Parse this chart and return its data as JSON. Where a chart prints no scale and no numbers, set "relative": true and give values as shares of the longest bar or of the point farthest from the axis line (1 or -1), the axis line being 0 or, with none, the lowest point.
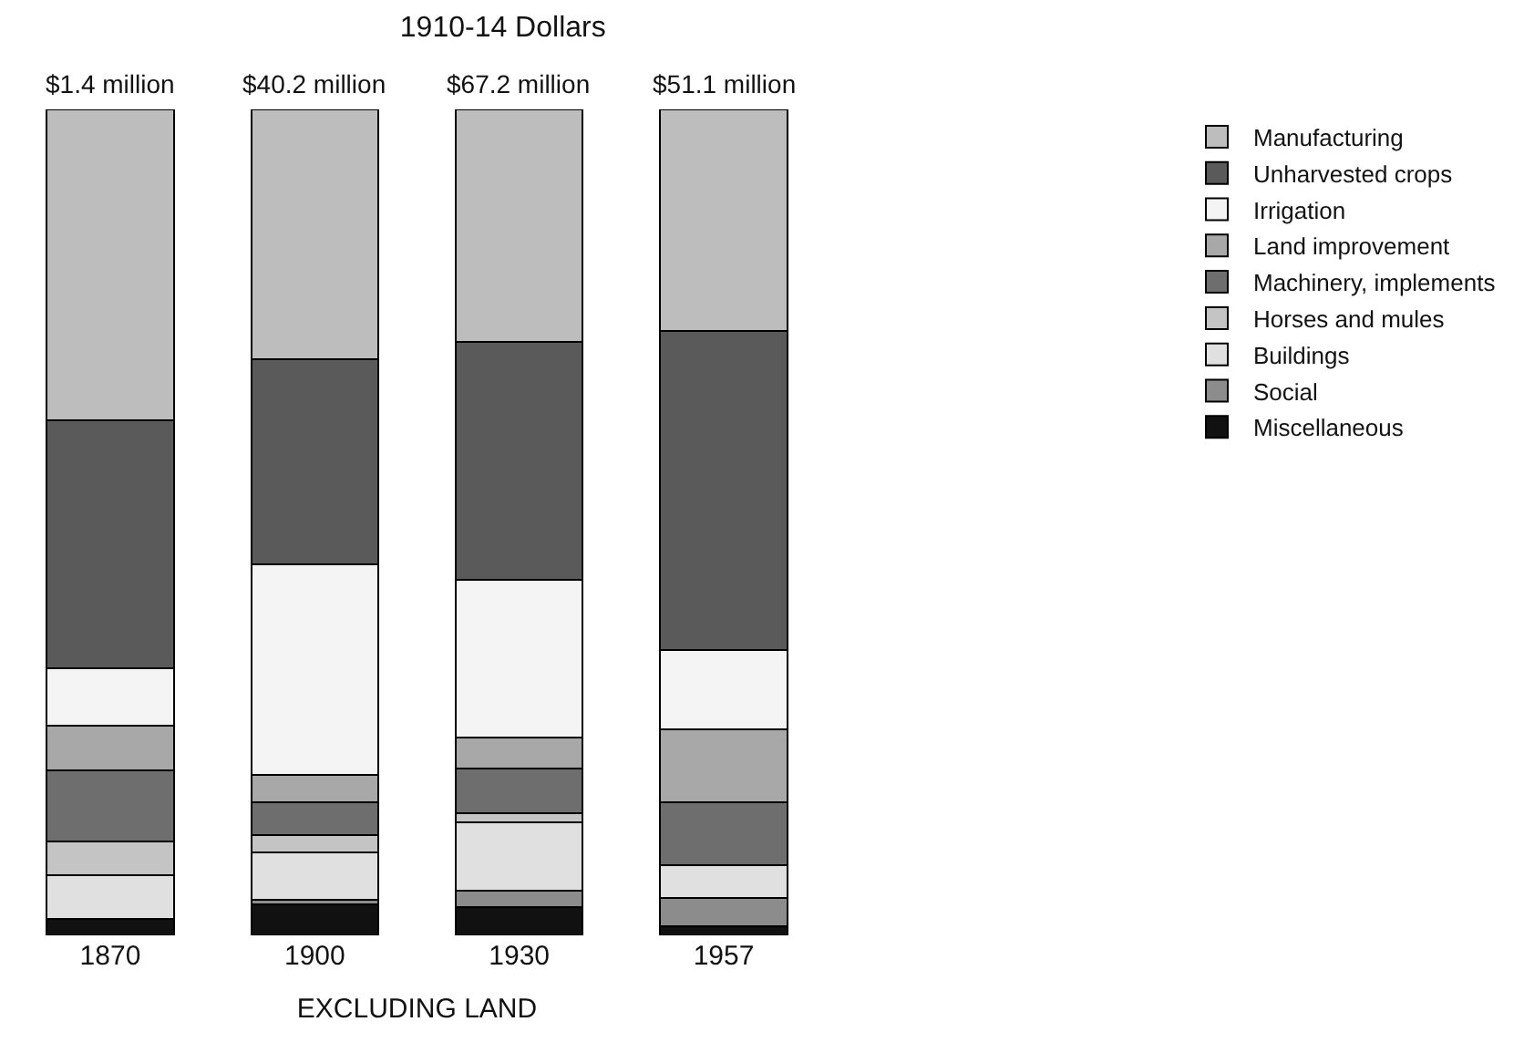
{
  "chart_data": {
    "type": "bar",
    "title": "1910-14 Dollars",
    "xlabel": "EXCLUDING LAND",
    "categories": [
      "1870",
      "1900",
      "1930",
      "1957"
    ],
    "stacked": true,
    "relative": true,
    "legend": "right",
    "annotations": [
      "$1.4 million",
      "$40.2 million",
      "$67.2 million",
      "$51.1 million"
    ],
    "series": [
      {
        "name": "Miscellaneous",
        "color": "#111111",
        "values": [
          0.02,
          0.038,
          0.034,
          0.011
        ]
      },
      {
        "name": "Social",
        "color": "#8c8c8c",
        "values": [
          0,
          0.005,
          0.02,
          0.034
        ]
      },
      {
        "name": "Buildings",
        "color": "#e0e0e0",
        "values": [
          0.053,
          0.058,
          0.083,
          0.04
        ]
      },
      {
        "name": "Horses and mules",
        "color": "#c4c4c4",
        "values": [
          0.041,
          0.02,
          0.011,
          0
        ]
      },
      {
        "name": "Machinery, implements",
        "color": "#6e6e6e",
        "values": [
          0.086,
          0.04,
          0.054,
          0.076
        ]
      },
      {
        "name": "Land improvement",
        "color": "#a8a8a8",
        "values": [
          0.054,
          0.033,
          0.038,
          0.089
        ]
      },
      {
        "name": "Irrigation",
        "color": "#f4f4f4",
        "values": [
          0.069,
          0.255,
          0.19,
          0.096
        ]
      },
      {
        "name": "Unharvested crops",
        "color": "#5a5a5a",
        "values": [
          0.301,
          0.249,
          0.289,
          0.386
        ]
      },
      {
        "name": "Manufacturing",
        "color": "#bdbdbd",
        "values": [
          0.376,
          0.302,
          0.281,
          0.268
        ]
      }
    ]
  }
}
